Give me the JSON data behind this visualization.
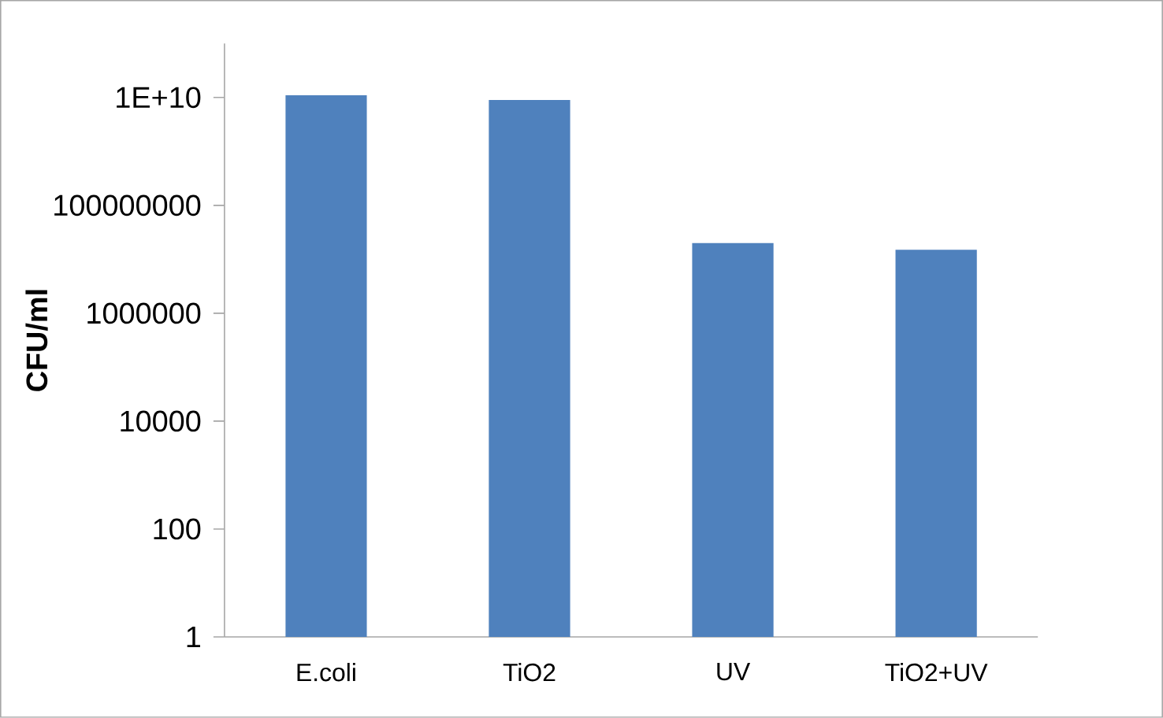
{
  "chart_data": {
    "type": "bar",
    "ylabel": "CFU/ml",
    "categories": [
      "E.coli",
      "TiO2",
      "UV",
      "TiO2+UV"
    ],
    "values": [
      11000000000,
      9000000000,
      20000000,
      15000000
    ],
    "color": "#4f81bd",
    "log": "y",
    "ylim": [
      1,
      100000000000
    ],
    "yticks": [
      1,
      100,
      10000,
      1000000,
      100000000,
      {
        "value": 10000000000,
        "label": "1E+10"
      }
    ]
  }
}
